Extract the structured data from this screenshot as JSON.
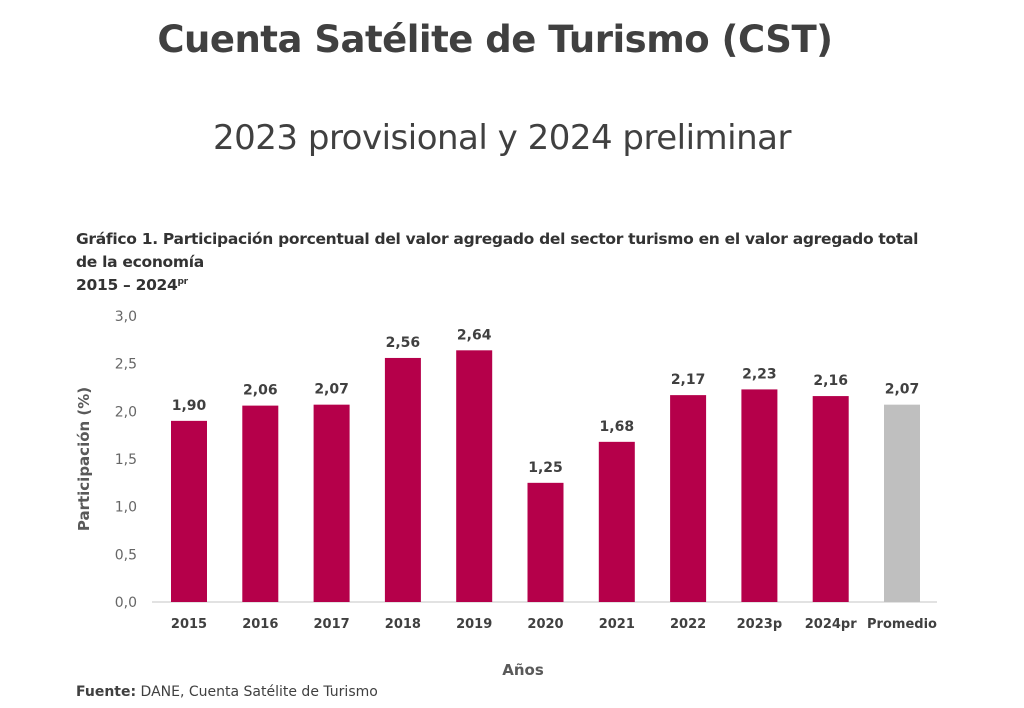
{
  "header": {
    "title": "Cuenta Satélite de Turismo (CST)",
    "subtitle": "2023 provisional y 2024 preliminar"
  },
  "caption": {
    "line1": "Gráfico 1. Participación porcentual del valor agregado del sector turismo en el valor agregado total",
    "line2": "de la economía",
    "period": "2015 – 2024",
    "period_sup": "pr"
  },
  "source": {
    "label": "Fuente:",
    "text": " DANE, Cuenta Satélite de Turismo"
  },
  "chart_data": {
    "type": "bar",
    "title": "Participación porcentual del valor agregado del sector turismo en el valor agregado total de la economía 2015 – 2024pr",
    "xlabel": "Años",
    "ylabel": "Participación  (%)",
    "ylim": [
      0,
      3.0
    ],
    "yticks": [
      0.0,
      0.5,
      1.0,
      1.5,
      2.0,
      2.5,
      3.0
    ],
    "ytick_labels": [
      "0,0",
      "0,5",
      "1,0",
      "1,5",
      "2,0",
      "2,5",
      "3,0"
    ],
    "grid": false,
    "legend": "none",
    "categories": [
      "2015",
      "2016",
      "2017",
      "2018",
      "2019",
      "2020",
      "2021",
      "2022",
      "2023p",
      "2024pr",
      "Promedio"
    ],
    "values": [
      1.9,
      2.06,
      2.07,
      2.56,
      2.64,
      1.25,
      1.68,
      2.17,
      2.23,
      2.16,
      2.07
    ],
    "value_labels": [
      "1,90",
      "2,06",
      "2,07",
      "2,56",
      "2,64",
      "1,25",
      "1,68",
      "2,17",
      "2,23",
      "2,16",
      "2,07"
    ],
    "colors": [
      "#B5004A",
      "#B5004A",
      "#B5004A",
      "#B5004A",
      "#B5004A",
      "#B5004A",
      "#B5004A",
      "#B5004A",
      "#B5004A",
      "#B5004A",
      "#BFBFBF"
    ],
    "axis_color": "#D9D9D9"
  }
}
